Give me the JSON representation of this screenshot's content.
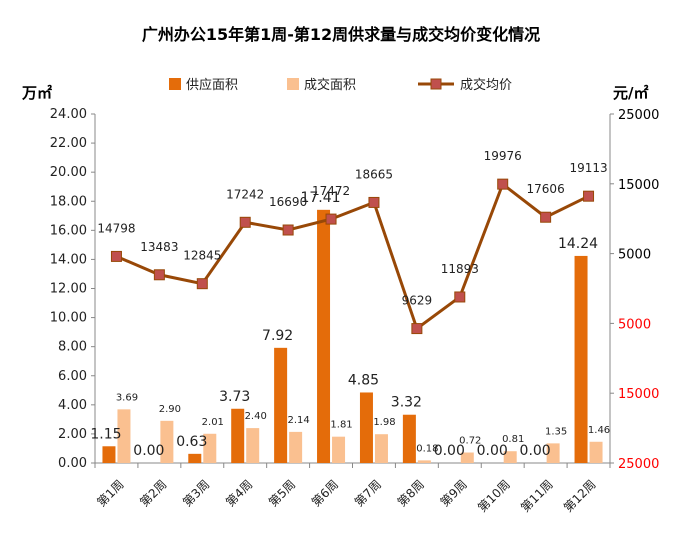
{
  "chart_data": {
    "type": "bar",
    "title": "广州办公15年第1周-第12周供求量与成交均价变化情况",
    "left_unit": "万㎡",
    "right_unit": "元/㎡",
    "categories": [
      "第1周",
      "第2周",
      "第3周",
      "第4周",
      "第5周",
      "第6周",
      "第7周",
      "第8周",
      "第9周",
      "第10周",
      "第11周",
      "第12周"
    ],
    "series": [
      {
        "name": "供应面积",
        "type": "bar",
        "axis": "left",
        "color": "#E46C0A",
        "values": [
          1.15,
          0.0,
          0.63,
          3.73,
          7.92,
          17.41,
          4.85,
          3.32,
          0.0,
          0.0,
          0.0,
          14.24
        ],
        "labels": [
          "1.15",
          "0.00",
          "0.63",
          "3.73",
          "7.92",
          "17.41",
          "4.85",
          "3.32",
          "0.00",
          "0.00",
          "0.00",
          "14.24"
        ]
      },
      {
        "name": "成交面积",
        "type": "bar",
        "axis": "left",
        "color": "#FAC090",
        "values": [
          3.69,
          2.9,
          2.01,
          2.4,
          2.14,
          1.81,
          1.98,
          0.18,
          0.72,
          0.81,
          1.35,
          1.46
        ],
        "labels": [
          "3.69",
          "2.90",
          "2.01",
          "2.40",
          "2.14",
          "1.81",
          "1.98",
          "0.18",
          "0.72",
          "0.81",
          "1.35",
          "1.46"
        ]
      },
      {
        "name": "成交均价",
        "type": "line",
        "axis": "right",
        "color": "#984807",
        "values": [
          14798,
          13483,
          12845,
          17242,
          16690,
          17472,
          18665,
          9629,
          11893,
          19976,
          17606,
          19113
        ],
        "labels": [
          "14798",
          "13483",
          "12845",
          "17242",
          "16690",
          "17472",
          "18665",
          "9629",
          "11893",
          "19976",
          "17606",
          "19113"
        ]
      }
    ],
    "left_axis": {
      "ticks": [
        "0.00",
        "2.00",
        "4.00",
        "6.00",
        "8.00",
        "10.00",
        "12.00",
        "14.00",
        "16.00",
        "18.00",
        "20.00",
        "22.00",
        "24.00"
      ],
      "ylim": [
        0,
        24
      ]
    },
    "right_axis": {
      "ticks": [
        "25000",
        "15000",
        "5000",
        "5000",
        "15000",
        "25000"
      ],
      "tick_colors": [
        "#000000",
        "#000000",
        "#000000",
        "#FF0000",
        "#FF0000",
        "#FF0000"
      ]
    },
    "legend_position": "top",
    "grid": false
  }
}
